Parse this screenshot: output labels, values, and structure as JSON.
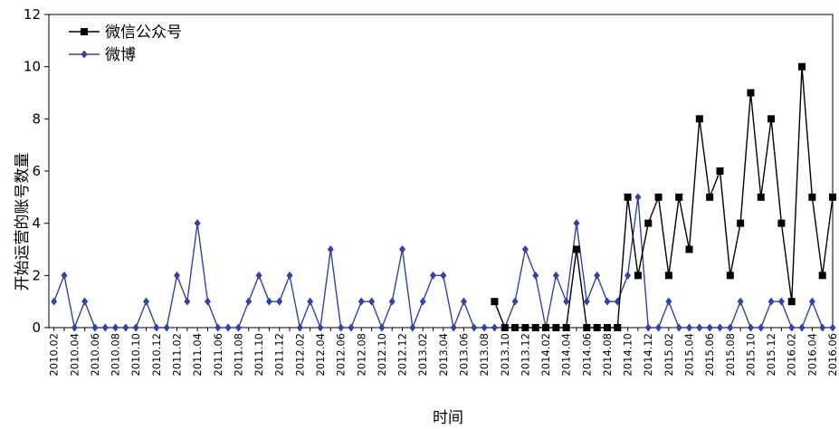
{
  "chart_data": {
    "type": "line",
    "xlabel": "时间",
    "ylabel": "开始运营的账号数量",
    "ylim": [
      0,
      12
    ],
    "y_ticks": [
      0,
      2,
      4,
      6,
      8,
      10,
      12
    ],
    "grid": false,
    "legend": "top-left",
    "x": [
      "2010.02",
      "2010.03",
      "2010.04",
      "2010.05",
      "2010.06",
      "2010.07",
      "2010.08",
      "2010.09",
      "2010.10",
      "2010.11",
      "2010.12",
      "2011.01",
      "2011.02",
      "2011.03",
      "2011.04",
      "2011.05",
      "2011.06",
      "2011.07",
      "2011.08",
      "2011.09",
      "2011.10",
      "2011.11",
      "2011.12",
      "2012.01",
      "2012.02",
      "2012.03",
      "2012.04",
      "2012.05",
      "2012.06",
      "2012.07",
      "2012.08",
      "2012.09",
      "2012.10",
      "2012.11",
      "2012.12",
      "2013.01",
      "2013.02",
      "2013.03",
      "2013.04",
      "2013.05",
      "2013.06",
      "2013.07",
      "2013.08",
      "2013.09",
      "2013.10",
      "2013.11",
      "2013.12",
      "2014.01",
      "2014.02",
      "2014.03",
      "2014.04",
      "2014.05",
      "2014.06",
      "2014.07",
      "2014.08",
      "2014.09",
      "2014.10",
      "2014.11",
      "2014.12",
      "2015.01",
      "2015.02",
      "2015.03",
      "2015.04",
      "2015.05",
      "2015.06",
      "2015.07",
      "2015.08",
      "2015.09",
      "2015.10",
      "2015.11",
      "2015.12",
      "2016.01",
      "2016.02",
      "2016.03",
      "2016.04",
      "2016.05",
      "2016.06"
    ],
    "x_tick_labels": [
      "2010.02",
      "2010.04",
      "2010.06",
      "2010.08",
      "2010.10",
      "2010.12",
      "2011.02",
      "2011.04",
      "2011.06",
      "2011.08",
      "2011.10",
      "2011.12",
      "2012.02",
      "2012.04",
      "2012.06",
      "2012.08",
      "2012.10",
      "2012.12",
      "2013.02",
      "2013.04",
      "2013.06",
      "2013.08",
      "2013.10",
      "2013.12",
      "2014.02",
      "2014.04",
      "2014.06",
      "2014.08",
      "2014.10",
      "2014.12",
      "2015.02",
      "2015.04",
      "2015.06",
      "2015.08",
      "2015.10",
      "2015.12",
      "2016.02",
      "2016.04",
      "2016.06"
    ],
    "series": [
      {
        "name": "微信公众号",
        "color": "#000000",
        "marker": "square",
        "values": [
          null,
          null,
          null,
          null,
          null,
          null,
          null,
          null,
          null,
          null,
          null,
          null,
          null,
          null,
          null,
          null,
          null,
          null,
          null,
          null,
          null,
          null,
          null,
          null,
          null,
          null,
          null,
          null,
          null,
          null,
          null,
          null,
          null,
          null,
          null,
          null,
          null,
          null,
          null,
          null,
          null,
          null,
          null,
          1,
          0,
          0,
          0,
          0,
          0,
          0,
          0,
          3,
          0,
          0,
          0,
          0,
          5,
          2,
          4,
          5,
          2,
          5,
          3,
          8,
          5,
          6,
          2,
          4,
          9,
          5,
          8,
          4,
          1,
          10,
          5,
          2,
          5
        ]
      },
      {
        "name": "微博",
        "color": "#3441a6",
        "marker": "diamond",
        "values": [
          1,
          2,
          0,
          1,
          0,
          0,
          0,
          0,
          0,
          1,
          0,
          0,
          2,
          1,
          4,
          1,
          0,
          0,
          0,
          1,
          2,
          1,
          1,
          2,
          0,
          1,
          0,
          3,
          0,
          0,
          1,
          1,
          0,
          1,
          3,
          0,
          1,
          2,
          2,
          0,
          1,
          0,
          0,
          0,
          0,
          1,
          3,
          2,
          0,
          2,
          1,
          4,
          1,
          2,
          1,
          1,
          2,
          5,
          0,
          0,
          1,
          0,
          0,
          0,
          0,
          0,
          0,
          1,
          0,
          0,
          1,
          1,
          0,
          0,
          1,
          0,
          0
        ]
      }
    ]
  }
}
